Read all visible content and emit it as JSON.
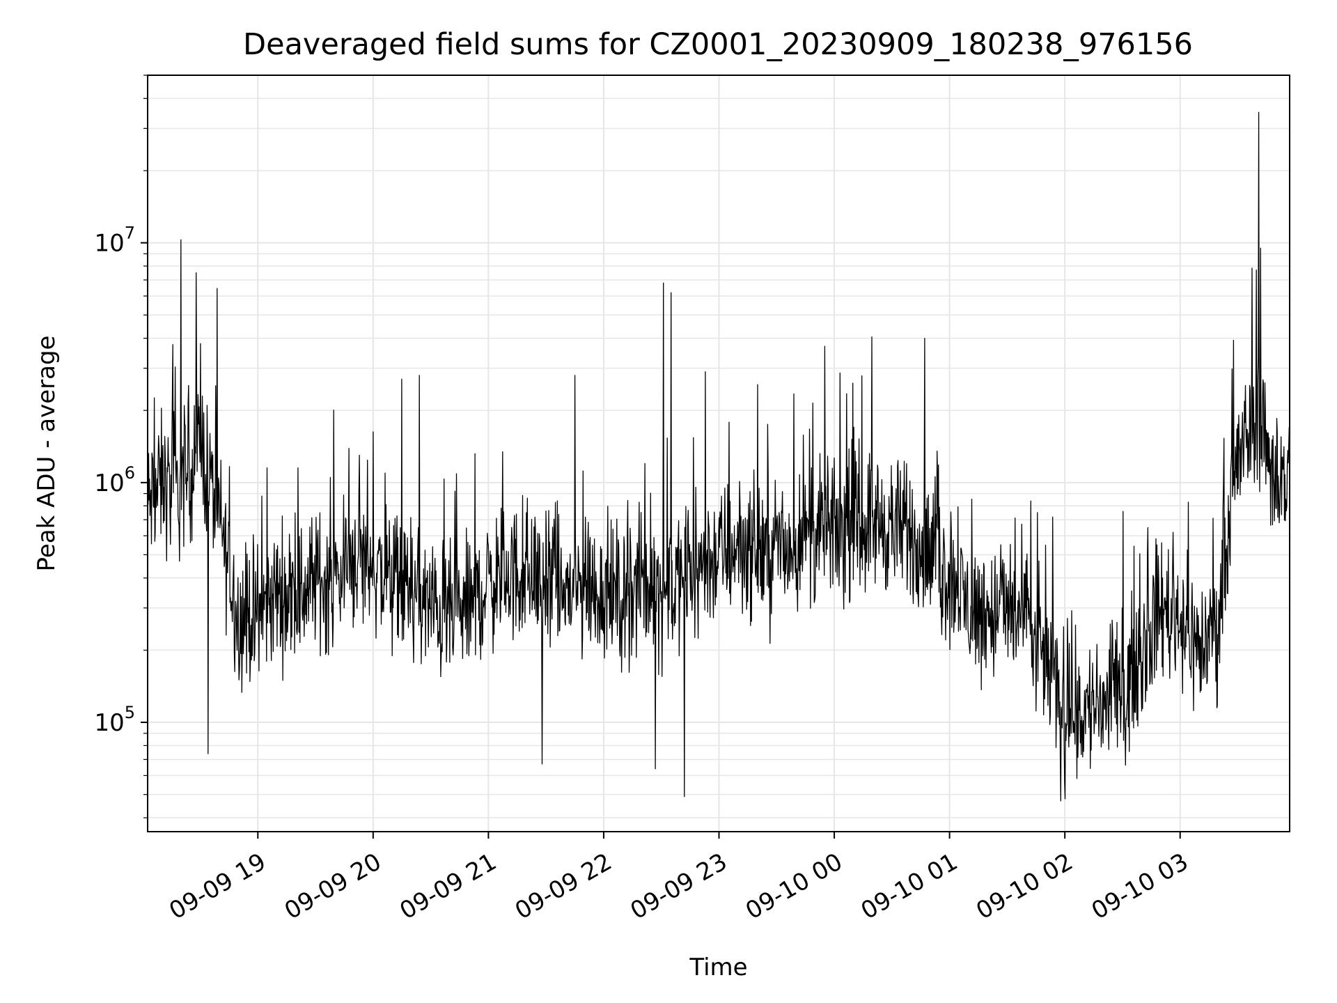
{
  "chart_data": {
    "type": "line",
    "title": "Deaveraged field sums for CZ0001_20230909_180238_976156",
    "xlabel": "Time",
    "ylabel": "Peak ADU - average",
    "yscale": "log",
    "xlim": [
      "2023-09-09 18:02:38",
      "2023-09-10 03:57:00"
    ],
    "ylim": [
      35000,
      50000000
    ],
    "grid": true,
    "line_color": "#000000",
    "grid_color": "#e6e6e6",
    "x_ticks": [
      {
        "label": "09-09 19",
        "t": "2023-09-09 19:00"
      },
      {
        "label": "09-09 20",
        "t": "2023-09-09 20:00"
      },
      {
        "label": "09-09 21",
        "t": "2023-09-09 21:00"
      },
      {
        "label": "09-09 22",
        "t": "2023-09-09 22:00"
      },
      {
        "label": "09-09 23",
        "t": "2023-09-09 23:00"
      },
      {
        "label": "09-10 00",
        "t": "2023-09-10 00:00"
      },
      {
        "label": "09-10 01",
        "t": "2023-09-10 01:00"
      },
      {
        "label": "09-10 02",
        "t": "2023-09-10 02:00"
      },
      {
        "label": "09-10 03",
        "t": "2023-09-10 03:00"
      }
    ],
    "y_ticks": [
      {
        "base": "10",
        "exp": "5",
        "value": 100000
      },
      {
        "base": "10",
        "exp": "6",
        "value": 1000000
      },
      {
        "base": "10",
        "exp": "7",
        "value": 10000000
      }
    ],
    "series": [
      {
        "points": [
          [
            "2023-09-09 18:03",
            800000
          ],
          [
            "2023-09-09 18:10",
            1000000
          ],
          [
            "2023-09-09 18:20",
            900000
          ],
          [
            "2023-09-09 18:30",
            1500000
          ],
          [
            "2023-09-09 18:40",
            700000
          ],
          [
            "2023-09-09 18:50",
            270000
          ],
          [
            "2023-09-09 19:00",
            280000
          ],
          [
            "2023-09-09 19:10",
            350000
          ],
          [
            "2023-09-09 19:20",
            330000
          ],
          [
            "2023-09-09 19:30",
            400000
          ],
          [
            "2023-09-09 19:40",
            380000
          ],
          [
            "2023-09-09 19:50",
            500000
          ],
          [
            "2023-09-09 20:00",
            450000
          ],
          [
            "2023-09-09 20:10",
            380000
          ],
          [
            "2023-09-09 20:20",
            350000
          ],
          [
            "2023-09-09 20:30",
            300000
          ],
          [
            "2023-09-09 20:40",
            280000
          ],
          [
            "2023-09-09 20:50",
            300000
          ],
          [
            "2023-09-09 21:00",
            380000
          ],
          [
            "2023-09-09 21:10",
            420000
          ],
          [
            "2023-09-09 21:20",
            400000
          ],
          [
            "2023-09-09 21:30",
            380000
          ],
          [
            "2023-09-09 21:40",
            350000
          ],
          [
            "2023-09-09 21:50",
            360000
          ],
          [
            "2023-09-09 22:00",
            350000
          ],
          [
            "2023-09-09 22:10",
            330000
          ],
          [
            "2023-09-09 22:20",
            380000
          ],
          [
            "2023-09-09 22:30",
            350000
          ],
          [
            "2023-09-09 22:40",
            380000
          ],
          [
            "2023-09-09 22:50",
            450000
          ],
          [
            "2023-09-09 23:00",
            500000
          ],
          [
            "2023-09-09 23:10",
            550000
          ],
          [
            "2023-09-09 23:20",
            520000
          ],
          [
            "2023-09-09 23:30",
            500000
          ],
          [
            "2023-09-09 23:40",
            550000
          ],
          [
            "2023-09-09 23:50",
            600000
          ],
          [
            "2023-09-10 00:00",
            620000
          ],
          [
            "2023-09-10 00:10",
            650000
          ],
          [
            "2023-09-10 00:20",
            700000
          ],
          [
            "2023-09-10 00:30",
            650000
          ],
          [
            "2023-09-10 00:40",
            600000
          ],
          [
            "2023-09-10 00:50",
            500000
          ],
          [
            "2023-09-10 01:00",
            400000
          ],
          [
            "2023-09-10 01:10",
            300000
          ],
          [
            "2023-09-10 01:20",
            280000
          ],
          [
            "2023-09-10 01:30",
            300000
          ],
          [
            "2023-09-10 01:40",
            260000
          ],
          [
            "2023-09-10 01:50",
            180000
          ],
          [
            "2023-09-10 02:00",
            120000
          ],
          [
            "2023-09-10 02:10",
            110000
          ],
          [
            "2023-09-10 02:20",
            120000
          ],
          [
            "2023-09-10 02:30",
            130000
          ],
          [
            "2023-09-10 02:40",
            200000
          ],
          [
            "2023-09-10 02:50",
            300000
          ],
          [
            "2023-09-10 03:00",
            280000
          ],
          [
            "2023-09-10 03:10",
            200000
          ],
          [
            "2023-09-10 03:20",
            260000
          ],
          [
            "2023-09-10 03:30",
            1200000
          ],
          [
            "2023-09-10 03:40",
            2000000
          ],
          [
            "2023-09-10 03:50",
            1000000
          ],
          [
            "2023-09-10 03:56",
            1050000
          ]
        ],
        "peaks": [
          [
            "2023-09-09 18:20",
            10300000
          ],
          [
            "2023-09-09 18:28",
            7500000
          ],
          [
            "2023-09-09 18:30",
            3800000
          ],
          [
            "2023-09-09 20:15",
            2700000
          ],
          [
            "2023-09-09 20:24",
            2800000
          ],
          [
            "2023-09-09 21:45",
            2800000
          ],
          [
            "2023-09-09 22:31",
            6800000
          ],
          [
            "2023-09-09 22:35",
            6200000
          ],
          [
            "2023-09-09 22:53",
            2900000
          ],
          [
            "2023-09-09 23:55",
            3700000
          ],
          [
            "2023-09-10 00:47",
            4000000
          ],
          [
            "2023-09-10 03:41",
            35000000
          ],
          [
            "2023-09-10 03:42",
            9500000
          ]
        ],
        "troughs": [
          [
            "2023-09-09 18:34",
            74000
          ],
          [
            "2023-09-09 21:28",
            67000
          ],
          [
            "2023-09-09 22:27",
            64000
          ],
          [
            "2023-09-09 22:42",
            49000
          ],
          [
            "2023-09-10 01:58",
            47000
          ],
          [
            "2023-09-10 02:00",
            48000
          ]
        ]
      }
    ]
  }
}
